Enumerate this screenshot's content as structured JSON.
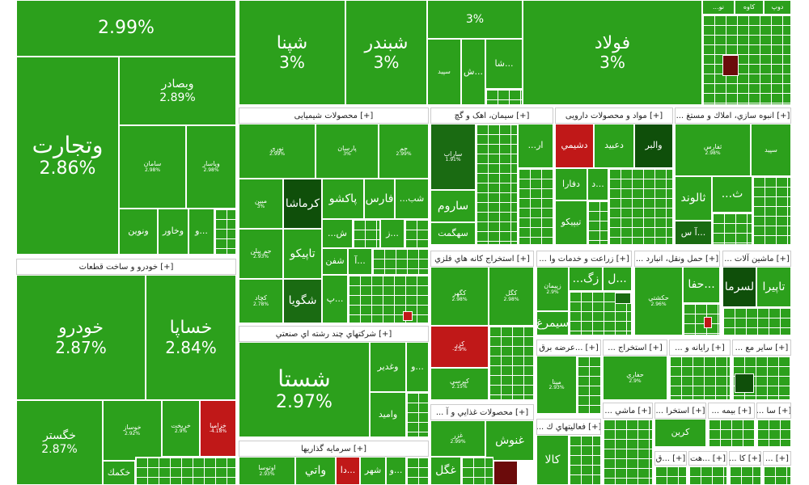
{
  "sectors": {
    "chemical": "[+] محصولات شیمیایی",
    "cement": "[+] سیمان، اهک و گچ",
    "pharma": "[+] مواد و محصولات دارویی",
    "realestate": "[+] انبوه سازي، املاك و مستغ ...",
    "auto": "[+] خودرو و ساخت قطعات",
    "mining": "[+] استخراج كانه هاي فلزي",
    "agri": "[+] زراعت و خدمات وا ...",
    "transport": "[+] حمل ونقل، انبارد ...",
    "machinery": "[+] ماشين آلات ...",
    "multi": "[+] شركتهاي چند رشته اي صنعتي",
    "electricity": "[+] ...عرضه برق",
    "extract2": "[+] استخراج ...",
    "computer": "[+] رايانه و ...",
    "other_mining": "[+] سایر مع ...",
    "food": "[+] محصولات غذايي و آ ...",
    "activities": "[+] فعاليتهاي ك ...",
    "investment": "[+] سرمايه گذاريها",
    "machinery2": "[+] ماشي ...",
    "extract3": "[+] استخرا ...",
    "insurance": "[+] بيمه ...",
    "s1": "[+] سا ...",
    "s2": "[+] ...ق",
    "s3": "[+] ...هت",
    "s4": "[+] كا ...",
    "s5": "[+] ...",
    "s6": "[+] ..."
  },
  "tiles": {
    "top_left_pct": "2.99%",
    "shapna": "شپنا",
    "shapna_pct": "3%",
    "shabandar": "شبندر",
    "shabandar_pct": "3%",
    "top_mid_pct": "3%",
    "foolad": "فولاد",
    "foolad_pct": "3%",
    "top_small1": "...نو",
    "top_small2": "كاوه",
    "top_small3": "دوپ",
    "sha": "شا...",
    "sh": "ش...",
    "sepid": "سپید",
    "vesader": "وبصادر",
    "vesader_pct": "2.89%",
    "tejarat": "وتجارت",
    "tejarat_pct": "2.86%",
    "saman": "سامان",
    "saman_pct": "2.98%",
    "vepasar": "وپاسار",
    "vepasar_pct": "2.98%",
    "novin": "ونوين",
    "vekhavar": "وخاور",
    "v3": "و...",
    "navari": "نوري",
    "navari_pct": "2.99%",
    "parsan": "پارسان",
    "parsan_pct": "3%",
    "jam": "جم",
    "jam_pct": "2.99%",
    "karmasha": "كرماشا",
    "pakshu": "پاكشو",
    "fars": "فارس",
    "shab": "...شب",
    "sh2": "...ش",
    "z": "ز...",
    "tapiko": "تاپيكو",
    "shfan": "شفن",
    "a": "آ...",
    "p": "پ...",
    "shegoya": "شگويا",
    "mobin": "مبين",
    "mobin_pct": "3%",
    "jam_pilen": "جم پيلن",
    "jam_pilen_pct": "2.93%",
    "kchad": "كچاد",
    "kchad_pct": "2.78%",
    "sarab": "ساراب",
    "sarab_pct": "1.91%",
    "ar": "...ار",
    "saroom": "ساروم",
    "sahgamt": "سهگمت",
    "dashimi": "دشيمي",
    "dabid": "دعبيد",
    "valbar": "والبر",
    "dafara": "دفارا",
    "d": "د...",
    "tipiko": "تيپيكو",
    "tolaras": "ثفارس",
    "tolaras_pct": "2.98%",
    "thalvand": "ثالوند",
    "t": "...ث",
    "as": "آ س...",
    "khodro": "خودرو",
    "khodro_pct": "2.87%",
    "khsapa": "خساپا",
    "khsapa_pct": "2.84%",
    "khegostar": "خگستر",
    "khegostar_pct": "2.87%",
    "khosapa2": "خوساز",
    "khosapa2_pct": "2.92%",
    "khrikhtan": "خريخت",
    "khrikhtan_pct": "2.9%",
    "khzamia": "خزاميا",
    "khzamia_pct": "-4.18%",
    "khekmok": "خكمك",
    "kegohar": "كگهر",
    "kegohar_pct": "2.98%",
    "kezar": "كزر",
    "kezar_pct": "-2.9%",
    "kaghal": "كگل",
    "kaghal_pct": "2.98%",
    "kopepsi": "كپرسي",
    "kopepsi_pct": "2.15%",
    "simorgh": "سيمرغ",
    "zg": "...زگ",
    "l": "ل...",
    "zpeyman": "زپيمان",
    "zpeyman_pct": "2.9%",
    "hakashti": "حكشتي",
    "hakashti_pct": "2.96%",
    "hafa": "حفا...",
    "tapira": "تاپيرا",
    "lasrma": "لسرما",
    "shasta": "شستا",
    "shasta_pct": "2.97%",
    "vaghadir": "وغدير",
    "v4": "و...",
    "vamid": "واميد",
    "mapna": "مپنا",
    "mapna_pct": "2.93%",
    "hafari": "حفاري",
    "hafari_pct": "2.9%",
    "ghnosh": "غنوش",
    "ghgol": "غگل",
    "ghzar": "غزر",
    "ghzar_pct": "2.99%",
    "kala": "كالا",
    "karin": "كرين",
    "vatna": "واتي",
    "vatna_pct": "2.97%",
    "da": "دا...",
    "shahr": "شهر",
    "vs": "و...",
    "vatoosa": "اوتوسا",
    "vatoosa_pct": "2.93%"
  }
}
